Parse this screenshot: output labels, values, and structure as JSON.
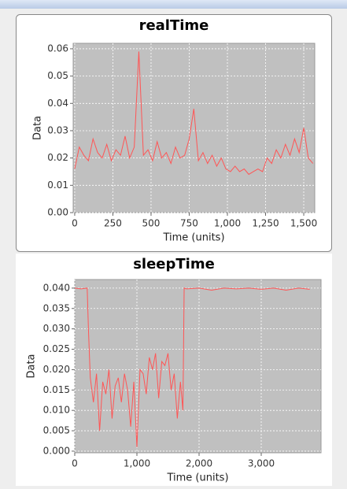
{
  "chart_data": [
    {
      "type": "line",
      "title": "realTime",
      "x_label": "Time (units)",
      "y_label": "Data",
      "xlim": [
        -10,
        1572
      ],
      "ylim": [
        0,
        0.062
      ],
      "xticks": [
        0,
        250,
        500,
        750,
        {
          "value": 1000,
          "label": "1,000"
        },
        {
          "value": 1250,
          "label": "1,250"
        },
        {
          "value": 1500,
          "label": "1,500"
        }
      ],
      "yticks": [
        {
          "value": 0,
          "label": "0.00"
        },
        0.01,
        0.02,
        0.03,
        0.04,
        0.05,
        0.06
      ],
      "grid": true,
      "x": [
        0,
        30,
        60,
        90,
        120,
        150,
        180,
        210,
        240,
        270,
        300,
        330,
        360,
        390,
        420,
        450,
        480,
        510,
        540,
        570,
        600,
        630,
        660,
        690,
        720,
        750,
        780,
        810,
        840,
        870,
        900,
        930,
        960,
        990,
        1020,
        1050,
        1080,
        1110,
        1140,
        1170,
        1200,
        1230,
        1260,
        1290,
        1320,
        1350,
        1380,
        1410,
        1440,
        1470,
        1500,
        1530,
        1560
      ],
      "series": [
        {
          "color": "#ff5555",
          "values": [
            0.016,
            0.024,
            0.021,
            0.019,
            0.027,
            0.022,
            0.02,
            0.025,
            0.019,
            0.023,
            0.021,
            0.028,
            0.02,
            0.024,
            0.059,
            0.021,
            0.023,
            0.019,
            0.026,
            0.02,
            0.022,
            0.018,
            0.024,
            0.02,
            0.021,
            0.027,
            0.038,
            0.019,
            0.022,
            0.018,
            0.021,
            0.017,
            0.02,
            0.016,
            0.015,
            0.017,
            0.015,
            0.016,
            0.014,
            0.015,
            0.016,
            0.015,
            0.02,
            0.018,
            0.023,
            0.02,
            0.025,
            0.021,
            0.027,
            0.022,
            0.031,
            0.02,
            0.018
          ]
        }
      ]
    },
    {
      "type": "line",
      "title": "sleepTime",
      "x_label": "Time (units)",
      "y_label": "Data",
      "xlim": [
        0,
        3962
      ],
      "ylim": [
        -0.0004,
        0.0421
      ],
      "xticks": [
        0,
        {
          "value": 1000,
          "label": "1,000"
        },
        {
          "value": 2000,
          "label": "2,000"
        },
        {
          "value": 3000,
          "label": "3,000"
        }
      ],
      "yticks": [
        {
          "value": 0,
          "label": "0.000"
        },
        0.005,
        {
          "value": 0.01,
          "label": "0.010"
        },
        0.015,
        {
          "value": 0.02,
          "label": "0.020"
        },
        0.025,
        {
          "value": 0.03,
          "label": "0.030"
        },
        0.035,
        {
          "value": 0.04,
          "label": "0.040"
        }
      ],
      "grid": true,
      "x": [
        0,
        100,
        200,
        220,
        250,
        300,
        350,
        400,
        450,
        500,
        550,
        600,
        650,
        700,
        750,
        800,
        850,
        900,
        950,
        1000,
        1050,
        1100,
        1150,
        1200,
        1250,
        1300,
        1350,
        1400,
        1450,
        1500,
        1550,
        1600,
        1650,
        1700,
        1740,
        1760,
        1800,
        2000,
        2200,
        2400,
        2600,
        2800,
        3000,
        3200,
        3400,
        3600,
        3780
      ],
      "series": [
        {
          "color": "#ff5555",
          "values": [
            0.04,
            0.0398,
            0.04,
            0.03,
            0.018,
            0.012,
            0.019,
            0.005,
            0.017,
            0.014,
            0.02,
            0.008,
            0.016,
            0.018,
            0.012,
            0.019,
            0.015,
            0.006,
            0.017,
            0.001,
            0.02,
            0.019,
            0.014,
            0.023,
            0.02,
            0.024,
            0.013,
            0.022,
            0.021,
            0.024,
            0.015,
            0.019,
            0.008,
            0.017,
            0.01,
            0.04,
            0.0398,
            0.04,
            0.0395,
            0.04,
            0.0398,
            0.04,
            0.0397,
            0.04,
            0.0395,
            0.04,
            0.0397
          ]
        }
      ]
    }
  ]
}
